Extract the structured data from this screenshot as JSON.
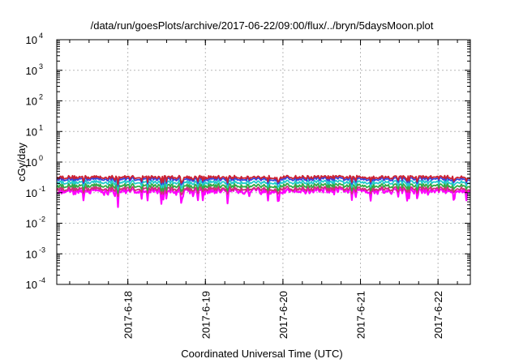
{
  "chart_data": {
    "type": "line",
    "title": "/data/run/goesPlots/archive/2017-06-22/09:00/flux/../bryn/5daysMoon.plot",
    "xlabel": "Coordinated Universal Time (UTC)",
    "ylabel": "cGy/day",
    "yscale": "log",
    "ylim": [
      0.0001,
      10000
    ],
    "ytick_base": "10",
    "ytick_exponents": [
      "-4",
      "-3",
      "-2",
      "-1",
      "0",
      "1",
      "2",
      "3",
      "4"
    ],
    "xlim": [
      "2017-06-17 02:00",
      "2017-06-22 10:00"
    ],
    "xtick_labels": [
      "2017-6-18",
      "2017-6-19",
      "2017-6-20",
      "2017-6-21",
      "2017-6-22"
    ],
    "xtick_dates": [
      "2017-06-18",
      "2017-06-19",
      "2017-06-20",
      "2017-06-21",
      "2017-06-22"
    ],
    "grid": true,
    "series": [
      {
        "color": "#cc2233",
        "level": 0.32
      },
      {
        "color": "#3344dd",
        "level": 0.28
      },
      {
        "color": "#22cccc",
        "level": 0.22
      },
      {
        "color": "#33aa44",
        "level": 0.17
      },
      {
        "color": "#cc3377",
        "level": 0.135
      },
      {
        "color": "#ff00ff",
        "level": 0.115
      }
    ]
  }
}
